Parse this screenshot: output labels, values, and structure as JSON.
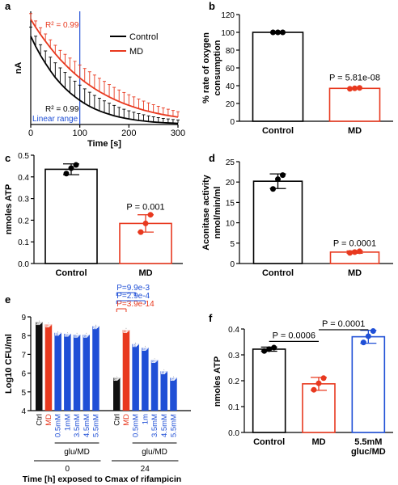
{
  "colors": {
    "control": "#000000",
    "md": "#e8391f",
    "glu": "#1f4fd6",
    "ctrl_fill": "#111111"
  },
  "chart_data": [
    {
      "panel": "a",
      "type": "line",
      "xlabel": "Time [s]",
      "ylabel": "nA",
      "xlim": [
        0,
        300
      ],
      "ylim": [
        0,
        1000
      ],
      "xticks": [
        "0",
        "100",
        "200",
        "300"
      ],
      "x": [
        0,
        10,
        20,
        30,
        40,
        50,
        60,
        70,
        80,
        90,
        100,
        110,
        120,
        130,
        140,
        150,
        160,
        170,
        180,
        190,
        200,
        210,
        220,
        230,
        240,
        250,
        260,
        270,
        280,
        290,
        300
      ],
      "series": [
        {
          "name": "Control",
          "values": [
            780,
            690,
            610,
            540,
            475,
            415,
            365,
            320,
            280,
            245,
            213,
            185,
            160,
            139,
            120,
            104,
            90,
            77,
            66,
            57,
            49,
            42,
            36,
            31,
            26,
            22,
            19,
            16,
            14,
            12,
            10
          ],
          "err": [
            80,
            90,
            95,
            110,
            120,
            130,
            135,
            140,
            140,
            138,
            135,
            130,
            125,
            118,
            112,
            105,
            98,
            92,
            85,
            78,
            72,
            66,
            60,
            55,
            50,
            46,
            42,
            38,
            35,
            32,
            30
          ]
        },
        {
          "name": "MD",
          "values": [
            930,
            860,
            795,
            735,
            678,
            625,
            575,
            530,
            487,
            448,
            411,
            377,
            346,
            317,
            290,
            266,
            243,
            222,
            203,
            185,
            169,
            154,
            140,
            127,
            116,
            105,
            96,
            87,
            79,
            72,
            65
          ],
          "err": [
            50,
            55,
            60,
            65,
            70,
            75,
            80,
            90,
            100,
            110,
            115,
            118,
            120,
            120,
            118,
            115,
            110,
            106,
            102,
            98,
            94,
            90,
            85,
            80,
            75,
            70,
            65,
            60,
            56,
            52,
            48
          ]
        }
      ],
      "annotations": {
        "r2_md": "R² = 0.99",
        "r2_control": "R² = 0.99",
        "linear": "Linear range"
      },
      "vline_x": 100,
      "legend": [
        "Control",
        "MD"
      ]
    },
    {
      "panel": "b",
      "type": "bar",
      "ylabel_lines": [
        "% rate of oxygen",
        "consumption"
      ],
      "categories": [
        "Control",
        "MD"
      ],
      "values": [
        100,
        37
      ],
      "ylim": [
        0,
        120
      ],
      "yticks": [
        "0",
        "20",
        "40",
        "60",
        "80",
        "100",
        "120"
      ],
      "points": [
        [
          100,
          100,
          100
        ],
        [
          36.5,
          37,
          37.5
        ]
      ],
      "pval": "P = 5.81e-08"
    },
    {
      "panel": "c",
      "type": "bar",
      "ylabel": "nmoles ATP",
      "categories": [
        "Control",
        "MD"
      ],
      "values": [
        0.435,
        0.185
      ],
      "err": [
        0.025,
        0.04
      ],
      "ylim": [
        0,
        0.5
      ],
      "yticks": [
        "0.0",
        "0.1",
        "0.2",
        "0.3",
        "0.4",
        "0.5"
      ],
      "points": [
        [
          0.415,
          0.44,
          0.455
        ],
        [
          0.145,
          0.185,
          0.225
        ]
      ],
      "pval": "P = 0.001"
    },
    {
      "panel": "d",
      "type": "bar",
      "ylabel_lines": [
        "Aconitase activity",
        "nmol/min/ml"
      ],
      "categories": [
        "Control",
        "MD"
      ],
      "values": [
        20.2,
        2.8
      ],
      "err": [
        1.8,
        0.3
      ],
      "ylim": [
        0,
        25
      ],
      "yticks": [
        "0",
        "5",
        "10",
        "15",
        "20",
        "25"
      ],
      "points": [
        [
          18.3,
          20.7,
          21.7
        ],
        [
          2.6,
          2.8,
          3.0
        ]
      ],
      "pval": "P = 0.0001"
    },
    {
      "panel": "e",
      "type": "bar",
      "ylabel": "Log10 CFU/ml",
      "ylim": [
        4,
        9
      ],
      "yticks": [
        "4",
        "5",
        "6",
        "7",
        "8",
        "9"
      ],
      "groups": [
        {
          "label": "0",
          "bars": [
            {
              "label": "Ctrl",
              "value": 8.72,
              "color": "ctrl"
            },
            {
              "label": "MD",
              "value": 8.6,
              "color": "md"
            },
            {
              "label": "0.5mM",
              "value": 8.15,
              "color": "glu"
            },
            {
              "label": "1mM",
              "value": 8.1,
              "color": "glu"
            },
            {
              "label": "3.5mM",
              "value": 8.05,
              "color": "glu"
            },
            {
              "label": "4.5mM",
              "value": 8.05,
              "color": "glu"
            },
            {
              "label": "5.5mM",
              "value": 8.5,
              "color": "glu"
            }
          ]
        },
        {
          "label": "24",
          "bars": [
            {
              "label": "Ctrl",
              "value": 5.75,
              "color": "ctrl"
            },
            {
              "label": "MD",
              "value": 8.3,
              "color": "md"
            },
            {
              "label": "0.5mM",
              "value": 7.55,
              "color": "glu"
            },
            {
              "label": "1m",
              "value": 7.35,
              "color": "glu"
            },
            {
              "label": "3.5mM",
              "value": 6.7,
              "color": "glu"
            },
            {
              "label": "4.5mM",
              "value": 6.1,
              "color": "glu"
            },
            {
              "label": "5.5mM",
              "value": 5.75,
              "color": "glu"
            }
          ]
        }
      ],
      "glu_label": "glu/MD",
      "xlabel": "Time [h] exposed to Cmax of rifampicin",
      "pvals": [
        {
          "text": "P=3.9e-14",
          "color": "md"
        },
        {
          "text": "P=2.9e-4",
          "color": "glu"
        },
        {
          "text": "P=9.9e-3",
          "color": "glu"
        }
      ]
    },
    {
      "panel": "f",
      "type": "bar",
      "ylabel": "nmoles ATP",
      "categories": [
        "Control",
        "MD",
        "5.5mM\ngluc/MD"
      ],
      "cat_lines": [
        [
          "Control"
        ],
        [
          "MD"
        ],
        [
          "5.5mM",
          "gluc/MD"
        ]
      ],
      "values": [
        0.322,
        0.188,
        0.37
      ],
      "err": [
        0.008,
        0.025,
        0.025
      ],
      "ylim": [
        0,
        0.4
      ],
      "yticks": [
        "0.0",
        "0.1",
        "0.2",
        "0.3",
        "0.4"
      ],
      "points": [
        [
          0.315,
          0.322,
          0.328
        ],
        [
          0.165,
          0.19,
          0.21
        ],
        [
          0.348,
          0.372,
          0.392
        ]
      ],
      "pvals": [
        {
          "text": "P = 0.0006",
          "from": 0,
          "to": 1
        },
        {
          "text": "P = 0.0001",
          "from": 1,
          "to": 2
        }
      ]
    }
  ]
}
